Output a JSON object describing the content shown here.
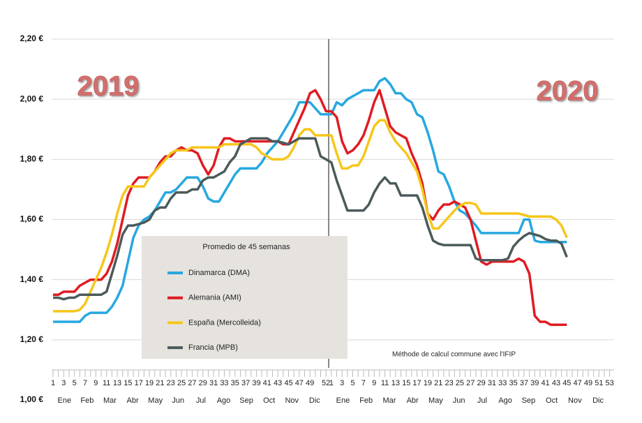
{
  "chart_data": {
    "type": "line",
    "annotations": [
      "2019",
      "2020"
    ],
    "legend_title": "Promedio de 45 semanas",
    "note": "Méthode de calcul commune avec l'IFIP",
    "month_labels": [
      "Ene",
      "Feb",
      "Mar",
      "Abr",
      "May",
      "Jun",
      "Jul",
      "Ago",
      "Sep",
      "Oct",
      "Nov",
      "Dic",
      "Ene",
      "Feb",
      "Mar",
      "Abr",
      "May",
      "Jun",
      "Jul",
      "Ago",
      "Sep",
      "Oct",
      "Nov",
      "Dic"
    ],
    "categories": [
      "1",
      null,
      "3",
      null,
      "5",
      null,
      "7",
      null,
      "9",
      null,
      "11",
      null,
      "13",
      null,
      "15",
      null,
      "17",
      null,
      "19",
      null,
      "21",
      null,
      "23",
      null,
      "25",
      null,
      "27",
      null,
      "29",
      null,
      "31",
      null,
      "33",
      null,
      "35",
      null,
      "37",
      null,
      "39",
      null,
      "41",
      null,
      "43",
      null,
      "45",
      null,
      "47",
      null,
      "49",
      null,
      null,
      "52",
      "1",
      null,
      "3",
      null,
      "5",
      null,
      "7",
      null,
      "9",
      null,
      "11",
      null,
      "13",
      null,
      "15",
      null,
      "17",
      null,
      "19",
      null,
      "21",
      null,
      "23",
      null,
      "25",
      null,
      "27",
      null,
      "29",
      null,
      "31",
      null,
      "33",
      null,
      "35",
      null,
      "37",
      null,
      "39",
      null,
      "41",
      null,
      "43",
      null,
      "45",
      null,
      "47",
      null,
      "49",
      null,
      "51",
      null,
      "53"
    ],
    "ylim": [
      1.0,
      2.2
    ],
    "yticks": [
      {
        "value": 1.0,
        "label": "1,00 €"
      },
      {
        "value": 1.2,
        "label": "1,20 €"
      },
      {
        "value": 1.4,
        "label": "1,40 €"
      },
      {
        "value": 1.6,
        "label": "1,60 €"
      },
      {
        "value": 1.8,
        "label": "1,80 €"
      },
      {
        "value": 2.0,
        "label": "2,00 €"
      },
      {
        "value": 2.2,
        "label": "2,20 €"
      }
    ],
    "grid": true,
    "series": [
      {
        "name": "Dinamarca (DMA)",
        "color": "#27a8e0",
        "values": [
          1.26,
          1.26,
          1.26,
          1.26,
          1.26,
          1.26,
          1.28,
          1.29,
          1.29,
          1.29,
          1.29,
          1.31,
          1.34,
          1.38,
          1.46,
          1.54,
          1.58,
          1.6,
          1.61,
          1.63,
          1.66,
          1.69,
          1.69,
          1.7,
          1.72,
          1.74,
          1.74,
          1.74,
          1.71,
          1.67,
          1.66,
          1.66,
          1.69,
          1.72,
          1.75,
          1.77,
          1.77,
          1.77,
          1.77,
          1.79,
          1.82,
          1.84,
          1.86,
          1.89,
          1.92,
          1.95,
          1.99,
          1.99,
          1.99,
          1.97,
          1.95,
          1.95,
          1.95,
          1.99,
          1.98,
          2.0,
          2.01,
          2.02,
          2.03,
          2.03,
          2.03,
          2.06,
          2.07,
          2.05,
          2.02,
          2.02,
          2.0,
          1.99,
          1.95,
          1.94,
          1.89,
          1.83,
          1.76,
          1.75,
          1.71,
          1.66,
          1.63,
          1.62,
          1.6,
          1.58,
          1.555,
          1.555,
          1.555,
          1.555,
          1.555,
          1.555,
          1.555,
          1.555,
          1.6,
          1.6,
          1.53,
          1.525,
          1.525,
          1.525,
          1.525,
          1.525,
          1.525,
          null,
          null,
          null,
          null,
          null,
          null,
          null,
          null
        ]
      },
      {
        "name": "Alemania (AMI)",
        "color": "#e01b22",
        "values": [
          1.35,
          1.35,
          1.36,
          1.36,
          1.36,
          1.38,
          1.39,
          1.4,
          1.4,
          1.4,
          1.42,
          1.46,
          1.52,
          1.6,
          1.68,
          1.72,
          1.74,
          1.74,
          1.74,
          1.76,
          1.79,
          1.81,
          1.81,
          1.83,
          1.84,
          1.83,
          1.83,
          1.82,
          1.78,
          1.75,
          1.78,
          1.84,
          1.87,
          1.87,
          1.86,
          1.86,
          1.86,
          1.86,
          1.86,
          1.86,
          1.86,
          1.86,
          1.86,
          1.85,
          1.85,
          1.89,
          1.93,
          1.97,
          2.02,
          2.03,
          2.0,
          1.96,
          1.96,
          1.94,
          1.86,
          1.82,
          1.83,
          1.85,
          1.88,
          1.93,
          1.99,
          2.03,
          1.97,
          1.91,
          1.89,
          1.88,
          1.87,
          1.82,
          1.78,
          1.72,
          1.62,
          1.6,
          1.63,
          1.65,
          1.65,
          1.66,
          1.65,
          1.64,
          1.6,
          1.53,
          1.46,
          1.45,
          1.46,
          1.46,
          1.46,
          1.46,
          1.46,
          1.47,
          1.46,
          1.42,
          1.28,
          1.26,
          1.26,
          1.25,
          1.25,
          1.25,
          1.25,
          null,
          null,
          null,
          null,
          null,
          null,
          null,
          null
        ]
      },
      {
        "name": "España (Mercolleida)",
        "color": "#f6c61a",
        "values": [
          1.295,
          1.295,
          1.295,
          1.295,
          1.295,
          1.3,
          1.32,
          1.36,
          1.4,
          1.44,
          1.49,
          1.55,
          1.62,
          1.68,
          1.71,
          1.71,
          1.71,
          1.71,
          1.74,
          1.76,
          1.78,
          1.8,
          1.82,
          1.83,
          1.83,
          1.83,
          1.84,
          1.84,
          1.84,
          1.84,
          1.84,
          1.84,
          1.85,
          1.85,
          1.85,
          1.85,
          1.85,
          1.85,
          1.84,
          1.82,
          1.81,
          1.8,
          1.8,
          1.8,
          1.81,
          1.84,
          1.88,
          1.9,
          1.9,
          1.88,
          1.88,
          1.88,
          1.88,
          1.82,
          1.77,
          1.77,
          1.78,
          1.78,
          1.81,
          1.86,
          1.91,
          1.93,
          1.93,
          1.89,
          1.86,
          1.84,
          1.82,
          1.79,
          1.76,
          1.7,
          1.62,
          1.57,
          1.57,
          1.59,
          1.61,
          1.63,
          1.645,
          1.655,
          1.655,
          1.65,
          1.62,
          1.62,
          1.62,
          1.62,
          1.62,
          1.62,
          1.62,
          1.62,
          1.615,
          1.61,
          1.61,
          1.61,
          1.61,
          1.61,
          1.6,
          1.58,
          1.54,
          null,
          null,
          null,
          null,
          null,
          null,
          null,
          null
        ]
      },
      {
        "name": "Francia (MPB)",
        "color": "#4b5a5a",
        "values": [
          1.34,
          1.34,
          1.335,
          1.34,
          1.34,
          1.35,
          1.35,
          1.35,
          1.35,
          1.35,
          1.36,
          1.42,
          1.48,
          1.55,
          1.58,
          1.58,
          1.585,
          1.59,
          1.6,
          1.63,
          1.64,
          1.64,
          1.67,
          1.69,
          1.69,
          1.69,
          1.7,
          1.7,
          1.73,
          1.74,
          1.74,
          1.75,
          1.76,
          1.79,
          1.81,
          1.85,
          1.86,
          1.87,
          1.87,
          1.87,
          1.87,
          1.86,
          1.86,
          1.855,
          1.85,
          1.86,
          1.87,
          1.87,
          1.87,
          1.87,
          1.81,
          1.8,
          1.79,
          1.73,
          1.68,
          1.63,
          1.63,
          1.63,
          1.63,
          1.65,
          1.69,
          1.72,
          1.74,
          1.72,
          1.72,
          1.68,
          1.68,
          1.68,
          1.68,
          1.64,
          1.58,
          1.53,
          1.52,
          1.515,
          1.515,
          1.515,
          1.515,
          1.515,
          1.515,
          1.47,
          1.465,
          1.465,
          1.465,
          1.465,
          1.465,
          1.47,
          1.51,
          1.53,
          1.545,
          1.555,
          1.55,
          1.545,
          1.535,
          1.53,
          1.53,
          1.52,
          1.475,
          null,
          null,
          null,
          null,
          null,
          null,
          null,
          null
        ]
      }
    ]
  }
}
